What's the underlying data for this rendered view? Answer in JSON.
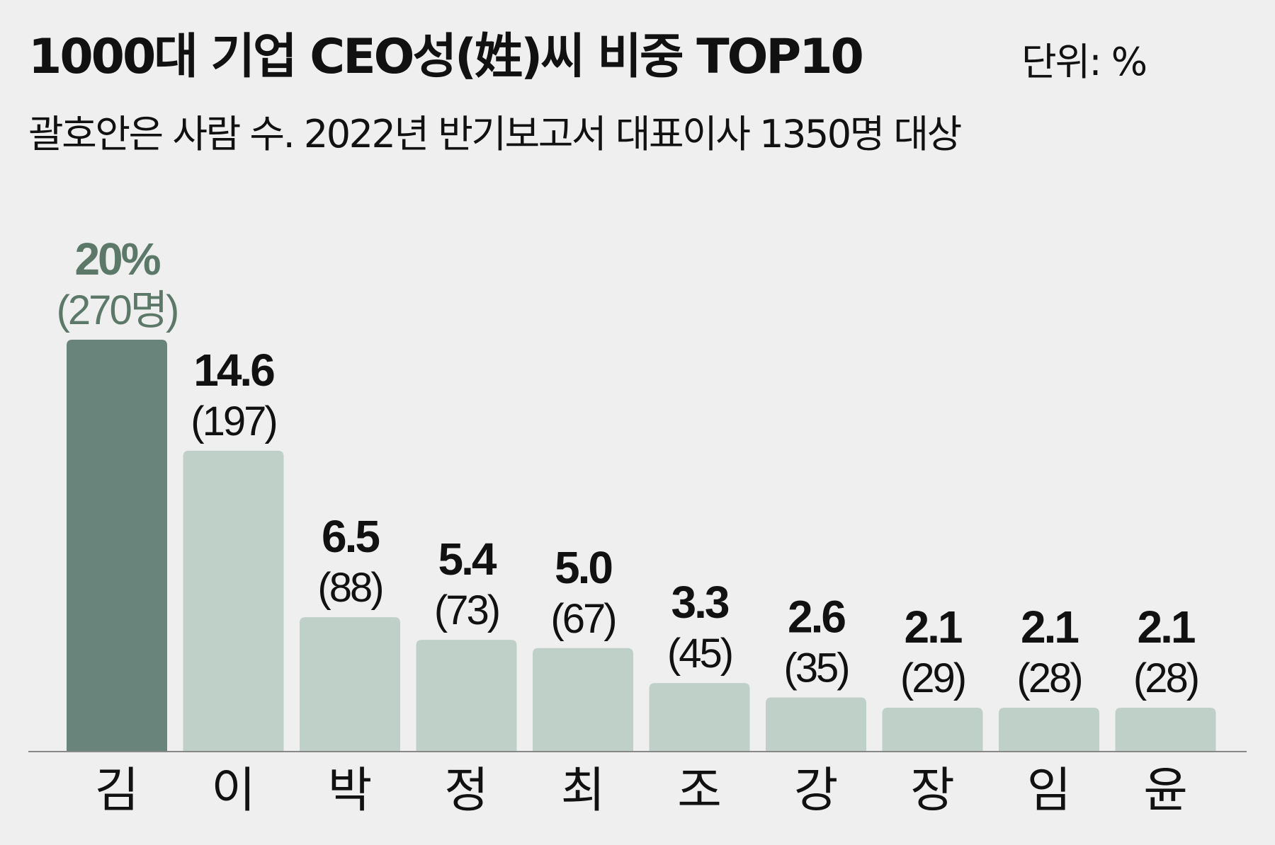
{
  "chart_data": {
    "type": "bar",
    "title": "1000대 기업 CEO성(姓)씨 비중 TOP10",
    "unit_label": "단위: %",
    "subtitle": "괄호안은 사람 수. 2022년 반기보고서 대표이사 1350명 대상",
    "categories": [
      "김",
      "이",
      "박",
      "정",
      "최",
      "조",
      "강",
      "장",
      "임",
      "윤"
    ],
    "value_labels": [
      "20%",
      "14.6",
      "6.5",
      "5.4",
      "5.0",
      "3.3",
      "2.6",
      "2.1",
      "2.1",
      "2.1"
    ],
    "count_labels": [
      "(270명)",
      "(197)",
      "(88)",
      "(73)",
      "(67)",
      "(45)",
      "(35)",
      "(29)",
      "(28)",
      "(28)"
    ],
    "series": [
      {
        "values": [
          20,
          14.6,
          6.5,
          5.4,
          5.0,
          3.3,
          2.6,
          2.1,
          2.1,
          2.1
        ],
        "counts": [
          270,
          197,
          88,
          73,
          67,
          45,
          35,
          29,
          28,
          28
        ]
      }
    ],
    "ylim": [
      0,
      20
    ],
    "highlight_index": 0,
    "colors": {
      "highlight_bar": "#69847a",
      "bar": "#bfd0c9",
      "highlight_text": "#5b7869",
      "text": "#111111",
      "axis": "#888888",
      "background": "#efefef"
    },
    "grid": false,
    "legend": "none"
  }
}
